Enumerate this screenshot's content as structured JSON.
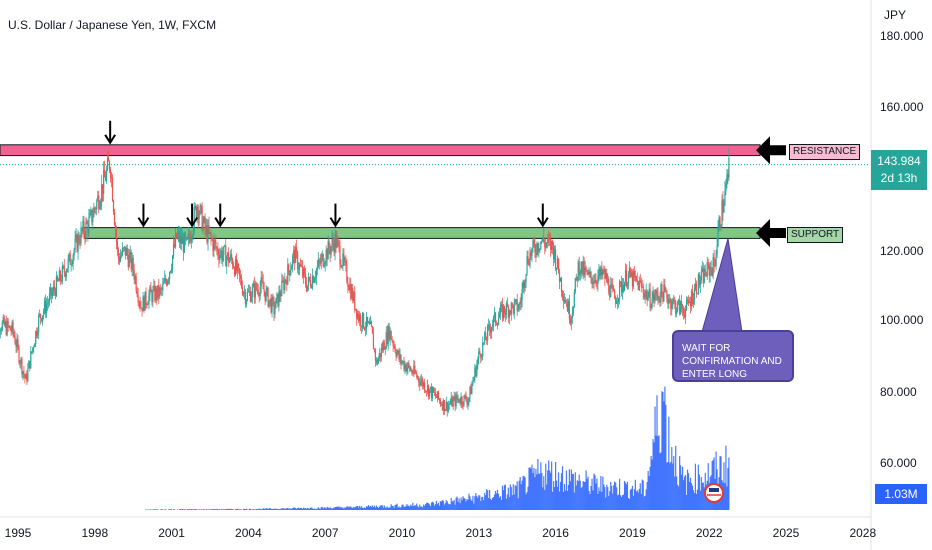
{
  "header": {
    "title": "U.S. Dollar / Japanese Yen, 1W, FXCM",
    "currency": "JPY"
  },
  "price_tag": {
    "price": "143.984",
    "countdown": "2d 13h"
  },
  "volume_tag": {
    "value": "1.03M"
  },
  "annotations": {
    "resistance_label": "RESISTANCE",
    "support_label": "SUPPORT",
    "note": "WAIT FOR CONFIRMATION AND ENTER LONG"
  },
  "colors": {
    "up_candle": "#26a69a",
    "down_candle": "#ef5350",
    "resistance_zone": "#f06292",
    "support_zone": "#81c784",
    "volume": "#2962ff",
    "note_box": "#6e5fbd"
  },
  "chart_data": {
    "type": "candlestick",
    "title": "U.S. Dollar / Japanese Yen, 1W, FXCM",
    "ylabel": "JPY",
    "y_ticks": [
      "60.000",
      "80.000",
      "100.000",
      "120.000",
      "160.000",
      "180.000"
    ],
    "x_ticks": [
      "1995",
      "1998",
      "2001",
      "2004",
      "2007",
      "2010",
      "2013",
      "2016",
      "2019",
      "2022",
      "2025",
      "2028"
    ],
    "ylim": [
      54,
      181
    ],
    "xlim": [
      1993.7,
      2029.0
    ],
    "resistance_zone": [
      146.5,
      149.5
    ],
    "support_zone": [
      123.5,
      126.5
    ],
    "last_price": 143.984,
    "price_series": [
      {
        "x": 1994.0,
        "y": 100
      },
      {
        "x": 1994.8,
        "y": 97
      },
      {
        "x": 1995.3,
        "y": 83
      },
      {
        "x": 1995.8,
        "y": 100
      },
      {
        "x": 1996.5,
        "y": 110
      },
      {
        "x": 1997.0,
        "y": 117
      },
      {
        "x": 1997.4,
        "y": 124
      },
      {
        "x": 1997.8,
        "y": 128
      },
      {
        "x": 1998.3,
        "y": 138
      },
      {
        "x": 1998.6,
        "y": 145
      },
      {
        "x": 1998.9,
        "y": 118
      },
      {
        "x": 1999.2,
        "y": 120
      },
      {
        "x": 1999.5,
        "y": 115
      },
      {
        "x": 1999.8,
        "y": 104
      },
      {
        "x": 2000.1,
        "y": 107
      },
      {
        "x": 2000.6,
        "y": 108
      },
      {
        "x": 2000.9,
        "y": 114
      },
      {
        "x": 2001.2,
        "y": 124
      },
      {
        "x": 2001.6,
        "y": 121
      },
      {
        "x": 2002.0,
        "y": 133
      },
      {
        "x": 2002.3,
        "y": 126
      },
      {
        "x": 2002.8,
        "y": 120
      },
      {
        "x": 2003.4,
        "y": 117
      },
      {
        "x": 2003.9,
        "y": 107
      },
      {
        "x": 2004.5,
        "y": 110
      },
      {
        "x": 2005.0,
        "y": 103
      },
      {
        "x": 2005.8,
        "y": 119
      },
      {
        "x": 2006.3,
        "y": 110
      },
      {
        "x": 2007.0,
        "y": 119
      },
      {
        "x": 2007.4,
        "y": 123
      },
      {
        "x": 2007.8,
        "y": 114
      },
      {
        "x": 2008.3,
        "y": 101
      },
      {
        "x": 2008.8,
        "y": 97
      },
      {
        "x": 2009.0,
        "y": 88
      },
      {
        "x": 2009.5,
        "y": 97
      },
      {
        "x": 2009.9,
        "y": 89
      },
      {
        "x": 2010.5,
        "y": 85
      },
      {
        "x": 2011.0,
        "y": 81
      },
      {
        "x": 2011.7,
        "y": 76
      },
      {
        "x": 2012.2,
        "y": 78
      },
      {
        "x": 2012.6,
        "y": 78
      },
      {
        "x": 2013.0,
        "y": 90
      },
      {
        "x": 2013.5,
        "y": 99
      },
      {
        "x": 2014.0,
        "y": 103
      },
      {
        "x": 2014.6,
        "y": 104
      },
      {
        "x": 2014.9,
        "y": 118
      },
      {
        "x": 2015.4,
        "y": 123
      },
      {
        "x": 2015.9,
        "y": 121
      },
      {
        "x": 2016.3,
        "y": 108
      },
      {
        "x": 2016.6,
        "y": 101
      },
      {
        "x": 2016.9,
        "y": 116
      },
      {
        "x": 2017.3,
        "y": 112
      },
      {
        "x": 2017.9,
        "y": 113
      },
      {
        "x": 2018.3,
        "y": 106
      },
      {
        "x": 2018.8,
        "y": 113
      },
      {
        "x": 2019.3,
        "y": 110
      },
      {
        "x": 2019.7,
        "y": 106
      },
      {
        "x": 2020.2,
        "y": 108
      },
      {
        "x": 2020.7,
        "y": 104
      },
      {
        "x": 2021.1,
        "y": 103
      },
      {
        "x": 2021.5,
        "y": 110
      },
      {
        "x": 2021.9,
        "y": 114
      },
      {
        "x": 2022.2,
        "y": 116
      },
      {
        "x": 2022.4,
        "y": 128
      },
      {
        "x": 2022.6,
        "y": 135
      },
      {
        "x": 2022.8,
        "y": 144
      }
    ],
    "arrow_markers": [
      {
        "x": 1998.6,
        "y": 149.5
      },
      {
        "x": 1999.9,
        "y": 126.5
      },
      {
        "x": 2001.8,
        "y": 126.5
      },
      {
        "x": 2002.9,
        "y": 126.5
      },
      {
        "x": 2007.4,
        "y": 126.5
      },
      {
        "x": 2015.5,
        "y": 126.5
      }
    ],
    "volume_series": [
      {
        "x": 1994.0,
        "v": 0.0
      },
      {
        "x": 2004.0,
        "v": 0.02
      },
      {
        "x": 2008.0,
        "v": 0.06
      },
      {
        "x": 2011.0,
        "v": 0.12
      },
      {
        "x": 2013.0,
        "v": 0.28
      },
      {
        "x": 2014.5,
        "v": 0.45
      },
      {
        "x": 2015.5,
        "v": 0.85
      },
      {
        "x": 2016.5,
        "v": 0.7
      },
      {
        "x": 2017.5,
        "v": 0.55
      },
      {
        "x": 2018.5,
        "v": 0.5
      },
      {
        "x": 2019.5,
        "v": 0.45
      },
      {
        "x": 2020.2,
        "v": 2.6
      },
      {
        "x": 2020.4,
        "v": 1.6
      },
      {
        "x": 2021.0,
        "v": 0.6
      },
      {
        "x": 2022.0,
        "v": 0.8
      },
      {
        "x": 2022.8,
        "v": 1.03
      }
    ]
  }
}
